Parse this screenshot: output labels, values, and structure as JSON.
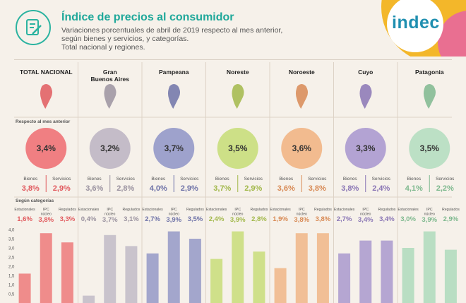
{
  "header": {
    "title": "Índice de precios al consumidor",
    "subtitle_lines": [
      "Variaciones porcentuales de abril de 2019 respecto al mes anterior,",
      "según bienes y servicios, y categorías.",
      "Total nacional y regiones."
    ],
    "logo": "indec"
  },
  "section_labels": {
    "monthly": "Respecto al mes anterior",
    "categories": "Según categorías"
  },
  "labels": {
    "bienes": "Bienes",
    "servicios": "Servicios",
    "estacionales": "Estacionales",
    "ipc_nucleo": "IPC\nnúcleo",
    "regulados": "Regulados"
  },
  "colors": {
    "teal": "#1fa89a",
    "logo_yellow": "#f3b72a",
    "logo_pink": "#e96f91",
    "logo_teal": "#57c7b8"
  },
  "chart_data": {
    "type": "bar",
    "y_ticks": [
      "4,0",
      "3,5",
      "3,0",
      "2,5",
      "2,0",
      "1,5",
      "1,0",
      "0,5"
    ],
    "ylim": [
      0,
      4.0
    ],
    "categories": [
      "Estacionales",
      "IPC núcleo",
      "Regulados"
    ],
    "regions": [
      {
        "name": "TOTAL NACIONAL",
        "total": "3,4%",
        "bienes": "3,8%",
        "servicios": "2,9%",
        "cats": [
          "1,6%",
          "3,8%",
          "3,3%"
        ],
        "values": [
          1.6,
          3.8,
          3.3
        ],
        "color": "#ef8c8b",
        "dark": "#e15a5e",
        "circle": "#f07f82"
      },
      {
        "name": "Gran\nBuenos Aires",
        "total": "3,2%",
        "bienes": "3,6%",
        "servicios": "2,8%",
        "cats": [
          "0,4%",
          "3,7%",
          "3,1%"
        ],
        "values": [
          0.4,
          3.7,
          3.1
        ],
        "color": "#c9c3cc",
        "dark": "#9b93a0",
        "circle": "#c4bcc8"
      },
      {
        "name": "Pampeana",
        "total": "3,7%",
        "bienes": "4,0%",
        "servicios": "2,9%",
        "cats": [
          "2,7%",
          "3,9%",
          "3,5%"
        ],
        "values": [
          2.7,
          3.9,
          3.5
        ],
        "color": "#a3a6cc",
        "dark": "#6f73a8",
        "circle": "#9ea2cc"
      },
      {
        "name": "Noreste",
        "total": "3,5%",
        "bienes": "3,7%",
        "servicios": "2,9%",
        "cats": [
          "2,4%",
          "3,9%",
          "2,8%"
        ],
        "values": [
          2.4,
          3.9,
          2.8
        ],
        "color": "#cfe08a",
        "dark": "#a2b84a",
        "circle": "#cde087"
      },
      {
        "name": "Noroeste",
        "total": "3,6%",
        "bienes": "3,6%",
        "servicios": "3,8%",
        "cats": [
          "1,9%",
          "3,8%",
          "3,8%"
        ],
        "values": [
          1.9,
          3.8,
          3.8
        ],
        "color": "#f1bf96",
        "dark": "#d88a55",
        "circle": "#f2bb8f"
      },
      {
        "name": "Cuyo",
        "total": "3,3%",
        "bienes": "3,8%",
        "servicios": "2,4%",
        "cats": [
          "2,7%",
          "3,4%",
          "3,4%"
        ],
        "values": [
          2.7,
          3.4,
          3.4
        ],
        "color": "#b5a6d2",
        "dark": "#8a76b5",
        "circle": "#b3a3d3"
      },
      {
        "name": "Patagonia",
        "total": "3,5%",
        "bienes": "4,1%",
        "servicios": "2,2%",
        "cats": [
          "3,0%",
          "3,9%",
          "2,9%"
        ],
        "values": [
          3.0,
          3.9,
          2.9
        ],
        "color": "#b9dec3",
        "dark": "#7fb98f",
        "circle": "#bce0c5"
      }
    ]
  }
}
